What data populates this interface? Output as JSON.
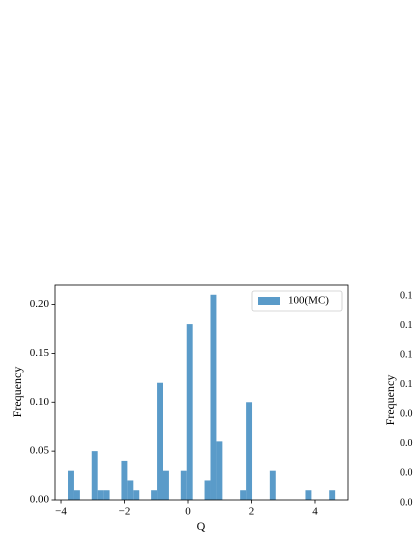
{
  "chart_data": {
    "type": "histogram",
    "xlabel": "Q",
    "ylabel": "Frequency",
    "bins": [
      -3.78,
      -3.593,
      -3.406,
      -3.219,
      -3.032,
      -2.845,
      -2.658,
      -2.471,
      -2.284,
      -2.097,
      -1.91,
      -1.723,
      -1.536,
      -1.349,
      -1.162,
      -0.975,
      -0.788,
      -0.601,
      -0.414,
      -0.227,
      -0.04,
      0.147,
      0.334,
      0.521,
      0.708,
      0.895,
      1.082,
      1.269,
      1.456,
      1.643,
      1.83,
      2.017,
      2.204,
      2.391,
      2.578,
      2.765,
      2.952,
      3.139,
      3.326,
      3.513,
      3.7,
      3.887,
      4.074,
      4.261,
      4.448,
      4.635
    ],
    "series": [
      {
        "name": "100(MC)",
        "color": "#5a9bc9",
        "values": [
          0.03,
          0.01,
          0,
          0,
          0.05,
          0.01,
          0.01,
          0,
          0,
          0.04,
          0.02,
          0.01,
          0,
          0,
          0.01,
          0.12,
          0.03,
          0,
          0,
          0.03,
          0.18,
          0,
          0,
          0.02,
          0.21,
          0.06,
          0,
          0,
          0,
          0.01,
          0.1,
          0,
          0,
          0,
          0.03,
          0,
          0,
          0,
          0,
          0,
          0.01,
          0,
          0,
          0,
          0.01
        ]
      }
    ],
    "xlim": [
      -4.19,
      5.04
    ],
    "ylim": [
      0,
      0.22
    ],
    "xticks": [
      {
        "value": -4,
        "label": "−4"
      },
      {
        "value": -2,
        "label": "−2"
      },
      0,
      2,
      4
    ],
    "yticks": [
      {
        "value": 0,
        "label": "0.00"
      },
      {
        "value": 0.05,
        "label": "0.05"
      },
      {
        "value": 0.1,
        "label": "0.10"
      },
      {
        "value": 0.15,
        "label": "0.15"
      },
      {
        "value": 0.2,
        "label": "0.20"
      }
    ],
    "legend": "upper right"
  },
  "clipped_panel": {
    "ylabel": "Frequency",
    "ytick_labels": [
      "0.1",
      "0.1",
      "0.1",
      "0.1",
      "0.0",
      "0.0",
      "0.0",
      "0.0"
    ]
  }
}
